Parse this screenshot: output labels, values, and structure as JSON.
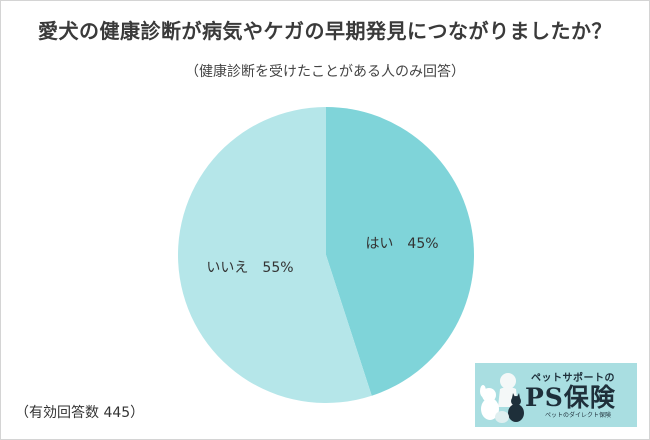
{
  "header": {
    "title": "愛犬の健康診断が病気やケガの早期発見につながりましたか？",
    "subtitle": "（健康診断を受けたことがある人のみ回答）"
  },
  "footnote": "（有効回答数 445）",
  "logo": {
    "tagline": "ペットサポートの",
    "brand": "PS保険",
    "caption": "ペットのダイレクト保険",
    "background": "#a9dee1",
    "icon": "dogs-and-cat-silhouette-icon"
  },
  "chart_data": {
    "type": "pie",
    "title": "愛犬の健康診断が病気やケガの早期発見につながりましたか？",
    "subtitle": "（健康診断を受けたことがある人のみ回答）",
    "slices": [
      {
        "label": "はい",
        "value": 45,
        "display": "はい　45%",
        "color": "#7fd4d9"
      },
      {
        "label": "いいえ",
        "value": 55,
        "display": "いいえ　55%",
        "color": "#b5e6e9"
      }
    ],
    "unit": "%",
    "start_angle_deg": 0,
    "direction": "clockwise",
    "legend": "none"
  }
}
